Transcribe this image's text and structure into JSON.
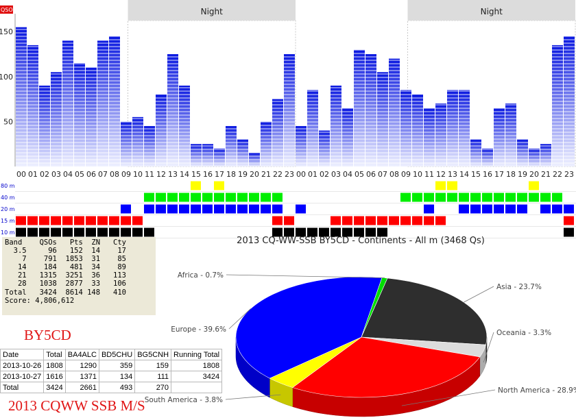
{
  "rate_chart": {
    "badge": "QSOs",
    "night_label": "Night",
    "y_ticks": [
      50,
      100,
      150
    ],
    "hours": [
      "00",
      "01",
      "02",
      "03",
      "04",
      "05",
      "06",
      "07",
      "08",
      "09",
      "10",
      "11",
      "12",
      "13",
      "14",
      "15",
      "16",
      "17",
      "18",
      "19",
      "20",
      "21",
      "22",
      "23",
      "00",
      "01",
      "02",
      "03",
      "04",
      "05",
      "06",
      "07",
      "08",
      "09",
      "10",
      "11",
      "12",
      "13",
      "14",
      "15",
      "16",
      "17",
      "18",
      "19",
      "20",
      "21",
      "22",
      "23"
    ],
    "band_labels": [
      "80 m",
      "40 m",
      "20 m",
      "15 m",
      "10 m"
    ],
    "band_colors": [
      "#ffff00",
      "#00ee00",
      "#0000ff",
      "#ff0000",
      "#000000"
    ]
  },
  "chart_data": [
    {
      "type": "bar",
      "title": "",
      "xlabel": "",
      "ylabel": "",
      "ylim": [
        0,
        170
      ],
      "categories": [
        "00",
        "01",
        "02",
        "03",
        "04",
        "05",
        "06",
        "07",
        "08",
        "09",
        "10",
        "11",
        "12",
        "13",
        "14",
        "15",
        "16",
        "17",
        "18",
        "19",
        "20",
        "21",
        "22",
        "23",
        "00",
        "01",
        "02",
        "03",
        "04",
        "05",
        "06",
        "07",
        "08",
        "09",
        "10",
        "11",
        "12",
        "13",
        "14",
        "15",
        "16",
        "17",
        "18",
        "19",
        "20",
        "21",
        "22",
        "23"
      ],
      "values": [
        155,
        135,
        90,
        105,
        140,
        115,
        110,
        140,
        145,
        50,
        55,
        45,
        80,
        125,
        90,
        25,
        25,
        20,
        45,
        30,
        15,
        50,
        75,
        125,
        45,
        85,
        40,
        90,
        65,
        130,
        125,
        105,
        120,
        85,
        80,
        65,
        70,
        85,
        85,
        30,
        20,
        65,
        70,
        30,
        20,
        25,
        135,
        145
      ],
      "night_periods": [
        [
          "10",
          "23"
        ],
        [
          "10",
          "23"
        ]
      ]
    },
    {
      "type": "pie",
      "title": "2013 CQ-WW-SSB BY5CD - Continents - All m (3468 Qs)",
      "labels": [
        "Asia - 23.7%",
        "Oceania - 3.3%",
        "North America - 28.9%",
        "South America - 3.8%",
        "Europe - 39.6%",
        "Africa - 0.7%"
      ],
      "values": [
        23.7,
        3.3,
        28.9,
        3.8,
        39.6,
        0.7
      ],
      "colors": [
        "#2e2e2e",
        "#dcdcdc",
        "#ff0000",
        "#ffff00",
        "#0000ff",
        "#00dd00"
      ]
    }
  ],
  "band_summary": {
    "header": "Band    QSOs   Pts  ZN   Cty",
    "rows": [
      "  3.5     96   152  14    17",
      "    7    791  1853  31    85",
      "   14    184   481  34    89",
      "   21   1315  3251  36   113",
      "   28   1038  2877  33   106",
      "Total   3424  8614 148   410"
    ],
    "score": "Score: 4,806,612"
  },
  "callsign": "BY5CD",
  "contest_title": "2013 CQWW SSB M/S",
  "daily_table": {
    "headers": [
      "Date",
      "Total",
      "BA4ALC",
      "BD5CHU",
      "BG5CNH",
      "Running Total"
    ],
    "rows": [
      [
        "2013-10-26",
        "1808",
        "1290",
        "359",
        "159",
        "1808"
      ],
      [
        "2013-10-27",
        "1616",
        "1371",
        "134",
        "111",
        "3424"
      ],
      [
        "Total",
        "3424",
        "2661",
        "493",
        "270",
        ""
      ]
    ]
  }
}
